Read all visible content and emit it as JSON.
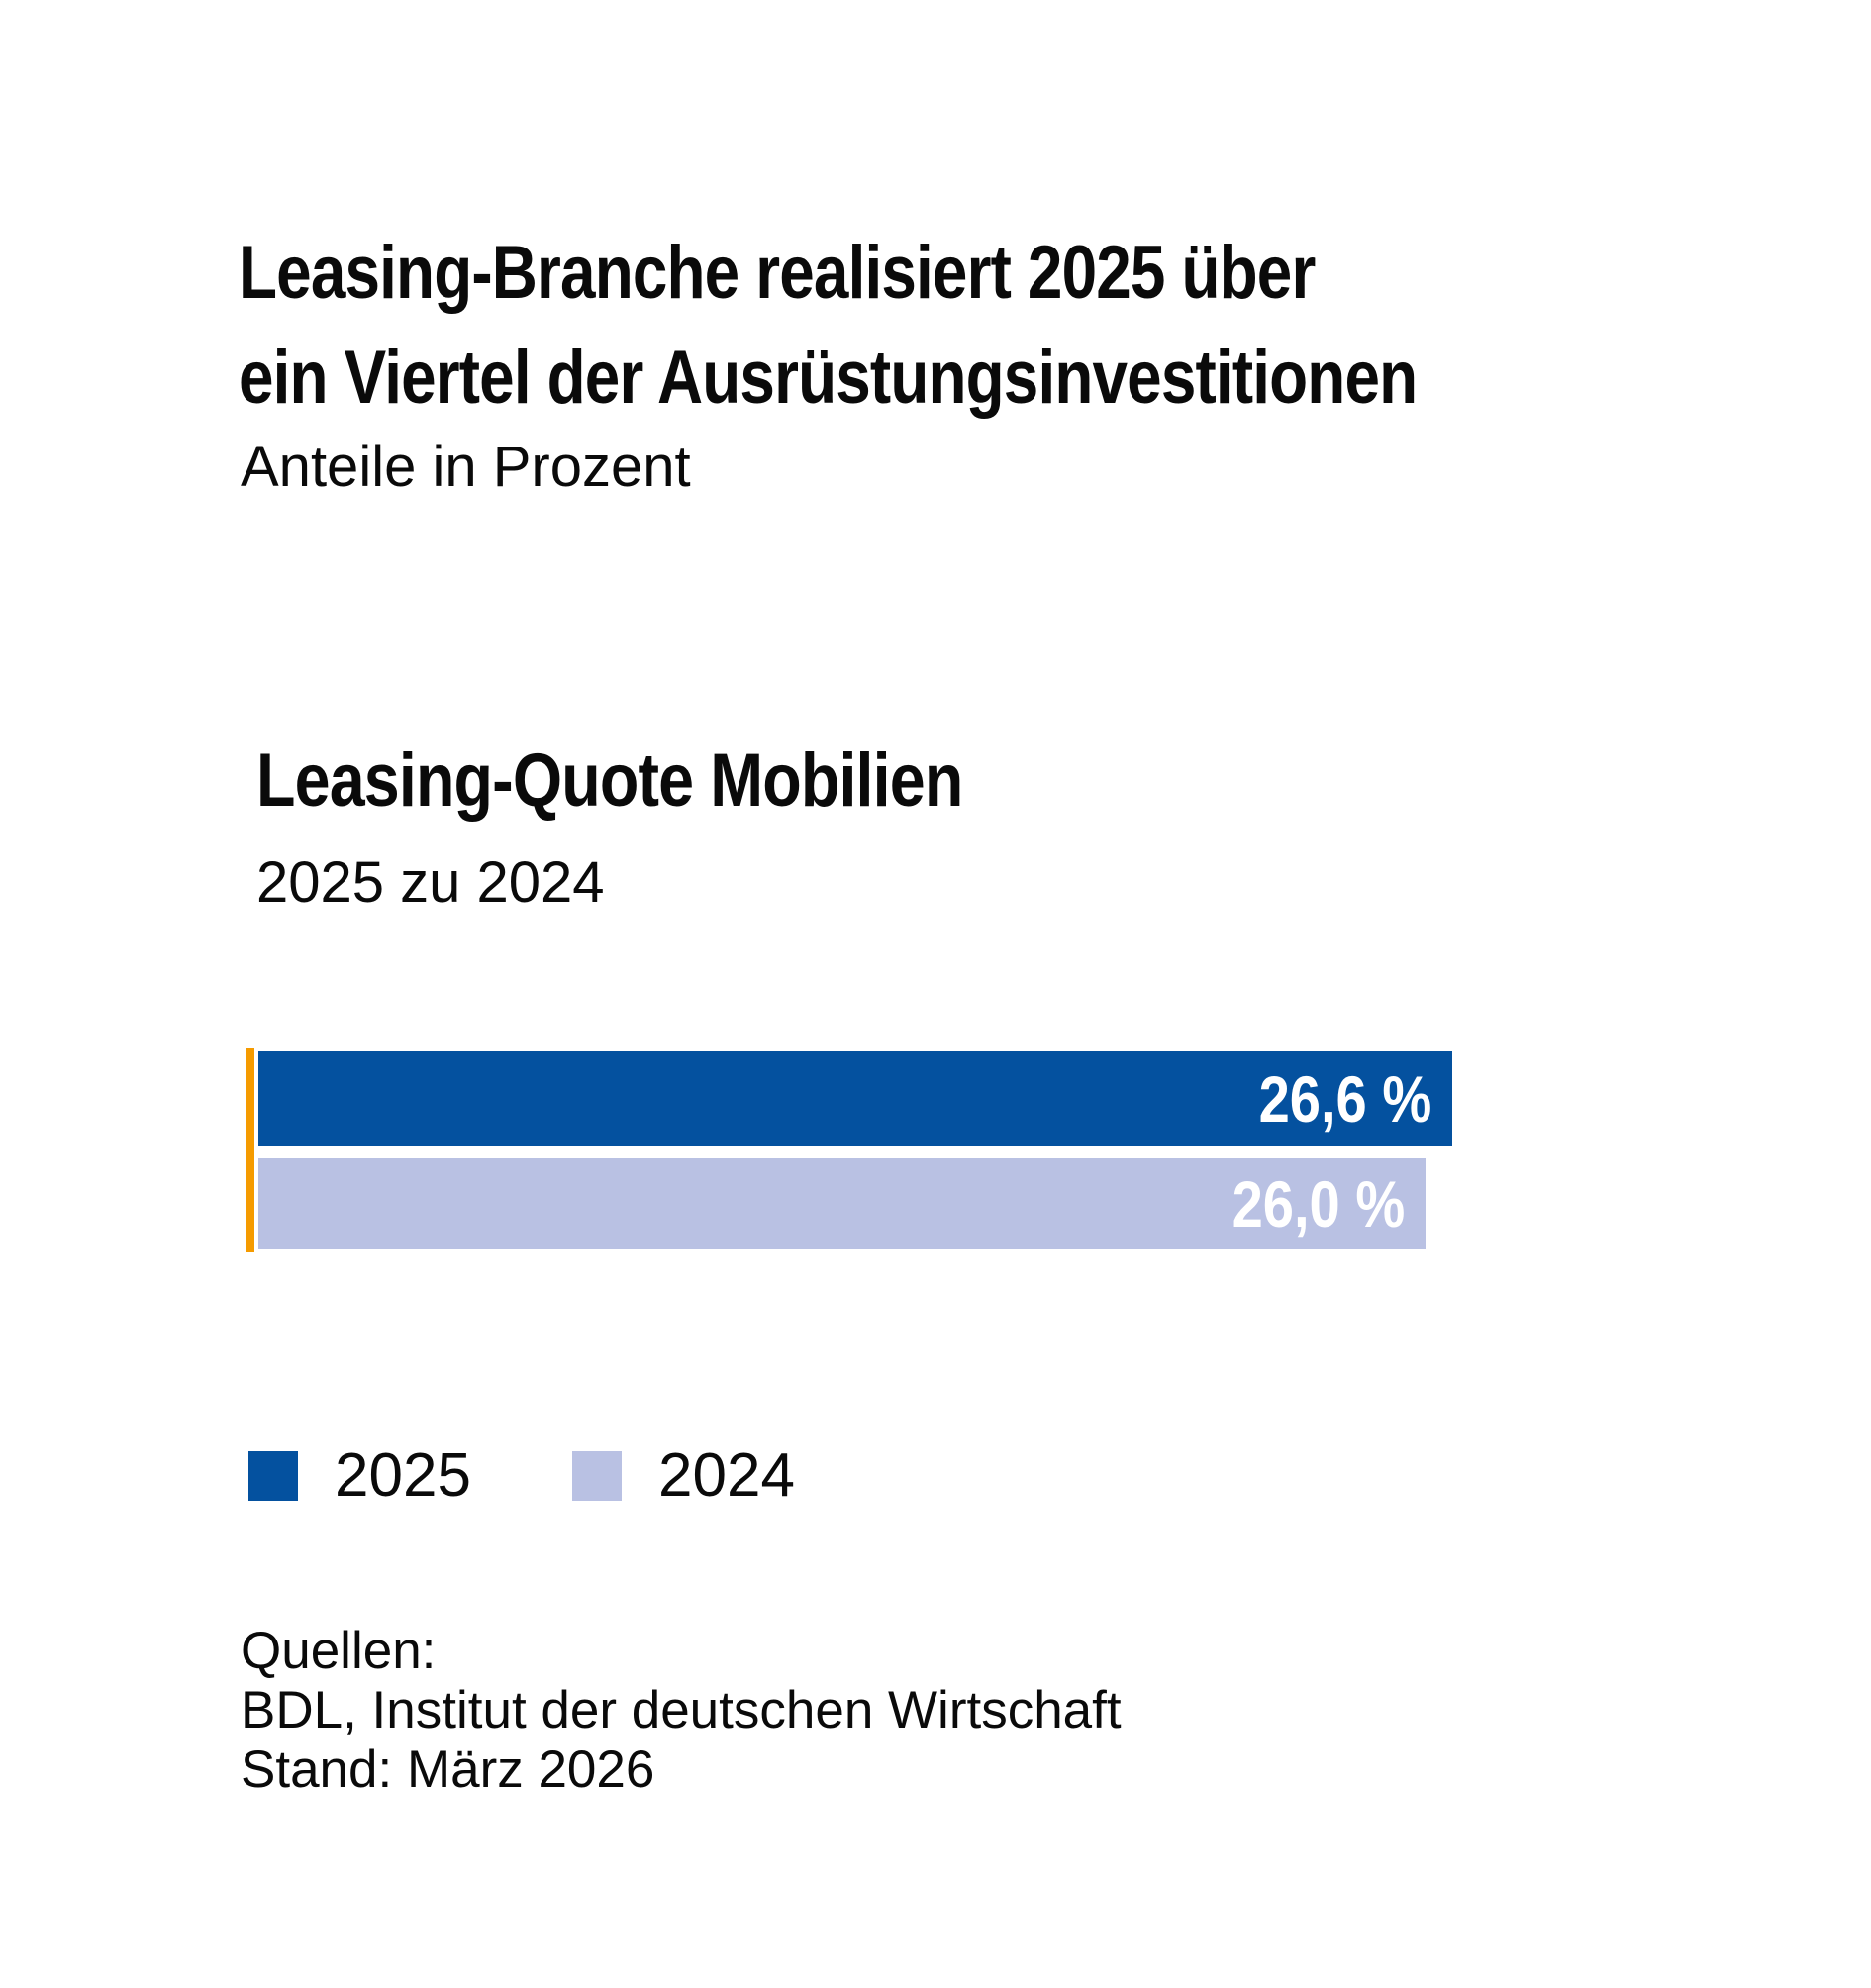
{
  "header": {
    "title_lines": [
      "Leasing-Branche realisiert 2025 über",
      "ein Viertel der Ausrüstungsinvestitionen"
    ],
    "subtitle": "Anteile in Prozent"
  },
  "chart_data": {
    "type": "bar",
    "orientation": "horizontal",
    "title": "Leasing-Quote Mobilien",
    "subtitle": "2025 zu 2024",
    "unit": "percent",
    "categories": [
      "2025",
      "2024"
    ],
    "values": [
      26.6,
      26.0
    ],
    "value_labels": [
      "26,6 %",
      "26,0 %"
    ],
    "series_colors": [
      "#04519F",
      "#B9C1E3"
    ],
    "axis_color": "#F59B00",
    "value_label_color": "#ffffff",
    "xlim": [
      0,
      26.6
    ],
    "grid": false,
    "legend_position": "bottom",
    "legend": [
      {
        "label": "2025",
        "color": "#04519F"
      },
      {
        "label": "2024",
        "color": "#B9C1E3"
      }
    ]
  },
  "footer": {
    "source_lines": [
      "Quellen:",
      "BDL, Institut der deutschen Wirtschaft",
      "Stand: März 2026"
    ]
  }
}
